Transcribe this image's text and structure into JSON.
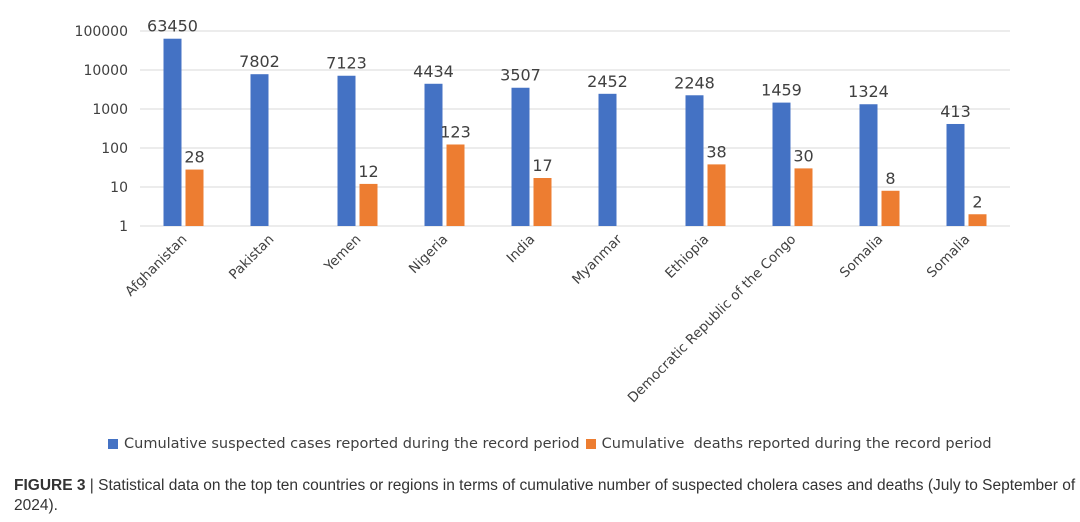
{
  "chart_data": {
    "type": "bar",
    "scale": "log",
    "ylim": [
      1,
      100000
    ],
    "yticks": [
      "100000",
      "10000",
      "1000",
      "100",
      "10",
      "1"
    ],
    "categories": [
      "Afghanistan",
      "Pakistan",
      "Yemen",
      "Nigeria",
      "India",
      "Myanmar",
      "Ethiopia",
      "Democratic Republic of the Congo",
      "Somalia",
      "Somalia"
    ],
    "series": [
      {
        "name": "Cumulative suspected cases reported during the record period",
        "color": "#4472c4",
        "values": [
          63450,
          7802,
          7123,
          4434,
          3507,
          2452,
          2248,
          1459,
          1324,
          413
        ]
      },
      {
        "name": "Cumulative  deaths reported during the record period",
        "color": "#ed7d31",
        "values": [
          28,
          null,
          12,
          123,
          17,
          null,
          38,
          30,
          8,
          2
        ]
      }
    ],
    "legend": "bottom"
  },
  "caption": {
    "label": "FIGURE 3",
    "separator": "|",
    "text": "Statistical data on the top ten countries or regions in terms of cumulative number of suspected cholera cases and deaths (July to September of 2024)."
  }
}
